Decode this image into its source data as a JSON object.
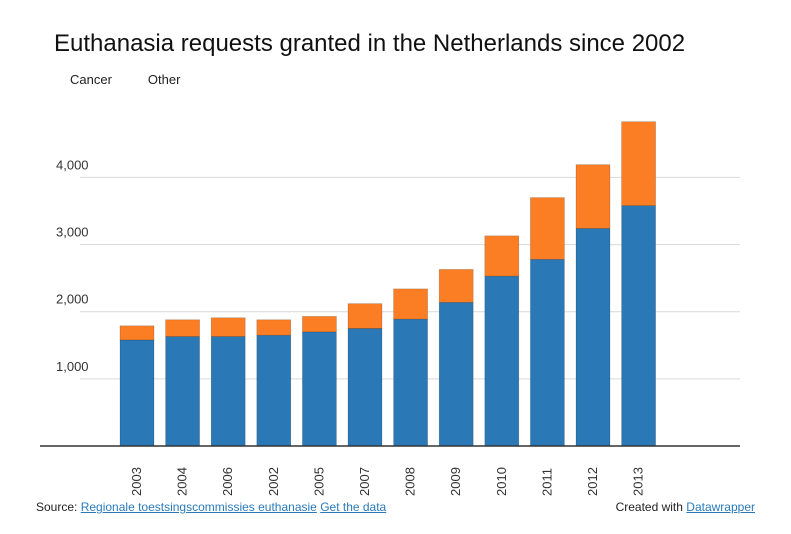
{
  "chart_data": {
    "type": "bar",
    "stacked": true,
    "title": "Euthanasia requests granted in the Netherlands since 2002",
    "categories": [
      "2003",
      "2004",
      "2006",
      "2002",
      "2005",
      "2007",
      "2008",
      "2009",
      "2010",
      "2011",
      "2012",
      "2013"
    ],
    "series": [
      {
        "name": "Cancer",
        "color": "#2a78b5",
        "values": [
          1580,
          1630,
          1630,
          1650,
          1700,
          1750,
          1890,
          2140,
          2530,
          2780,
          3240,
          3580
        ]
      },
      {
        "name": "Other",
        "color": "#fb7e25",
        "values": [
          210,
          250,
          280,
          230,
          230,
          370,
          450,
          490,
          600,
          920,
          950,
          1250
        ]
      }
    ],
    "ylim": [
      0,
      4900
    ],
    "yticks": [
      1000,
      2000,
      3000,
      4000
    ],
    "ytick_labels": [
      "1,000",
      "2,000",
      "3,000",
      "4,000"
    ],
    "xlabel": "",
    "ylabel": "",
    "grid": true,
    "legend_position": "top-left"
  },
  "footer": {
    "source_prefix": "Source:",
    "source_link": "Regionale toestsingscommissies euthanasie",
    "data_link": "Get the data",
    "created_prefix": "Created with",
    "created_link": "Datawrapper"
  }
}
